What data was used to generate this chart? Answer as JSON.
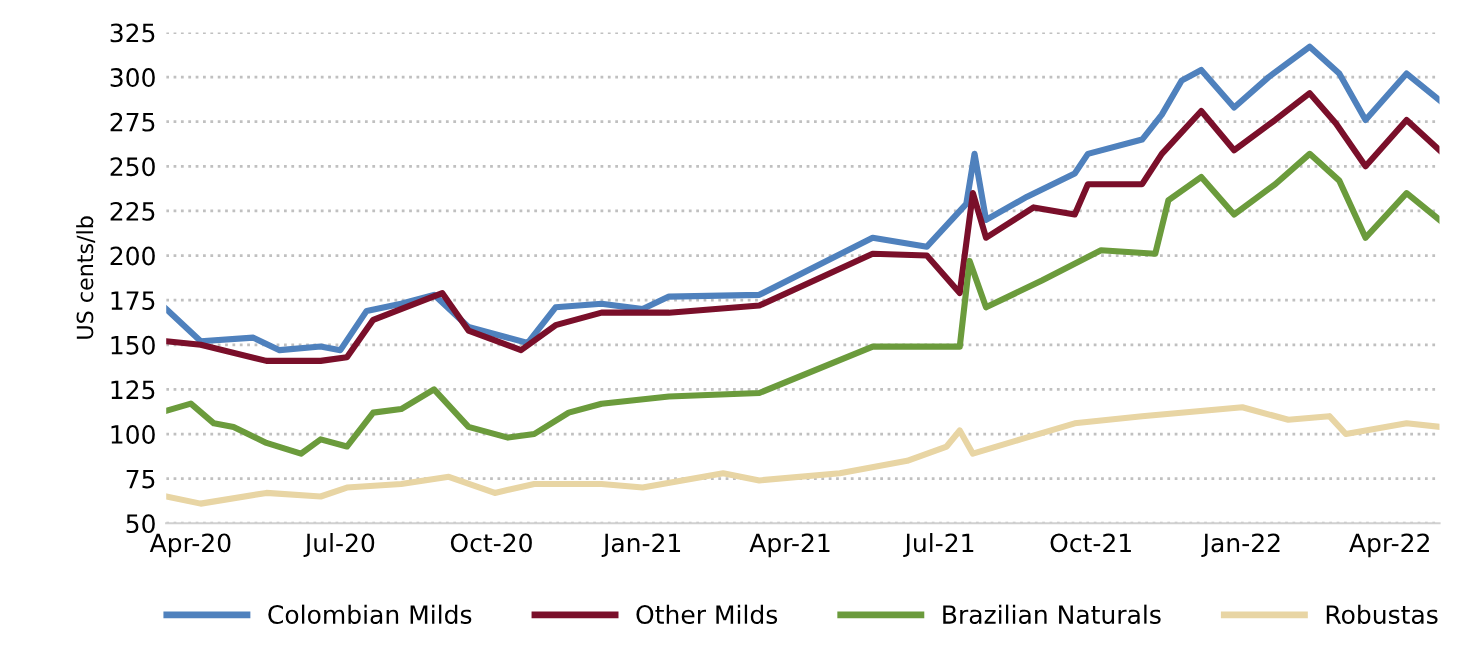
{
  "chart_data": {
    "type": "line",
    "ylabel": "US cents/lb",
    "xlim": [
      "2020-03-17",
      "2022-05-01"
    ],
    "xticks": [
      {
        "value": "2020-04-01",
        "label": "Apr-20"
      },
      {
        "value": "2020-07-01",
        "label": "Jul-20"
      },
      {
        "value": "2020-10-01",
        "label": "Oct-20"
      },
      {
        "value": "2021-01-01",
        "label": "Jan-21"
      },
      {
        "value": "2021-04-01",
        "label": "Apr-21"
      },
      {
        "value": "2021-07-01",
        "label": "Jul-21"
      },
      {
        "value": "2021-10-01",
        "label": "Oct-21"
      },
      {
        "value": "2022-01-01",
        "label": "Jan-22"
      },
      {
        "value": "2022-04-01",
        "label": "Apr-22"
      }
    ],
    "ylim": [
      50,
      325
    ],
    "yticks": [
      50,
      75,
      100,
      125,
      150,
      175,
      200,
      225,
      250,
      275,
      300,
      325
    ],
    "grid": "y",
    "legend": "bottom",
    "line_style": "solid",
    "marker": "none",
    "series": [
      {
        "name": "Colombian Milds",
        "color": "#4f81bd",
        "x": [
          "2020-03-17",
          "2020-04-07",
          "2020-05-09",
          "2020-05-25",
          "2020-06-19",
          "2020-07-01",
          "2020-07-17",
          "2020-08-07",
          "2020-08-27",
          "2020-09-17",
          "2020-10-23",
          "2020-11-09",
          "2020-12-07",
          "2021-01-01",
          "2021-01-17",
          "2021-03-13",
          "2021-05-21",
          "2021-06-23",
          "2021-07-17",
          "2021-07-22",
          "2021-07-29",
          "2021-08-23",
          "2021-09-21",
          "2021-09-29",
          "2021-11-01",
          "2021-11-13",
          "2021-11-25",
          "2021-12-07",
          "2021-12-27",
          "2022-01-17",
          "2022-02-11",
          "2022-03-01",
          "2022-03-17",
          "2022-04-11",
          "2022-05-01"
        ],
        "values": [
          170,
          152,
          154,
          147,
          149,
          147,
          169,
          173,
          178,
          160,
          151,
          171,
          173,
          170,
          177,
          178,
          210,
          205,
          229,
          257,
          220,
          233,
          246,
          257,
          265,
          279,
          298,
          304,
          283,
          300,
          317,
          302,
          276,
          302,
          287
        ]
      },
      {
        "name": "Other Milds",
        "color": "#7a0f2a",
        "x": [
          "2020-03-17",
          "2020-04-07",
          "2020-05-17",
          "2020-06-19",
          "2020-07-05",
          "2020-07-21",
          "2020-09-01",
          "2020-09-17",
          "2020-10-19",
          "2020-11-09",
          "2020-12-07",
          "2021-01-17",
          "2021-03-13",
          "2021-05-21",
          "2021-06-23",
          "2021-07-13",
          "2021-07-21",
          "2021-07-29",
          "2021-08-27",
          "2021-09-21",
          "2021-09-29",
          "2021-11-01",
          "2021-11-13",
          "2021-12-07",
          "2021-12-27",
          "2022-01-21",
          "2022-02-11",
          "2022-02-27",
          "2022-03-17",
          "2022-04-11",
          "2022-05-01"
        ],
        "values": [
          152,
          150,
          141,
          141,
          143,
          164,
          179,
          158,
          147,
          161,
          168,
          168,
          172,
          201,
          200,
          179,
          235,
          210,
          227,
          223,
          240,
          240,
          257,
          281,
          259,
          276,
          291,
          274,
          250,
          276,
          259
        ]
      },
      {
        "name": "Brazilian Naturals",
        "color": "#6b9b3c",
        "x": [
          "2020-03-17",
          "2020-04-01",
          "2020-04-15",
          "2020-04-27",
          "2020-05-17",
          "2020-06-07",
          "2020-06-19",
          "2020-07-05",
          "2020-07-21",
          "2020-08-07",
          "2020-08-27",
          "2020-09-17",
          "2020-10-11",
          "2020-10-27",
          "2020-11-17",
          "2020-12-07",
          "2021-01-17",
          "2021-03-13",
          "2021-05-21",
          "2021-07-13",
          "2021-07-19",
          "2021-07-29",
          "2021-09-01",
          "2021-10-07",
          "2021-11-09",
          "2021-11-17",
          "2021-12-07",
          "2021-12-27",
          "2022-01-21",
          "2022-02-11",
          "2022-03-01",
          "2022-03-17",
          "2022-04-11",
          "2022-05-01"
        ],
        "values": [
          113,
          117,
          106,
          104,
          95,
          89,
          97,
          93,
          112,
          114,
          125,
          104,
          98,
          100,
          112,
          117,
          121,
          123,
          149,
          149,
          197,
          171,
          186,
          203,
          201,
          231,
          244,
          223,
          240,
          257,
          242,
          210,
          235,
          220
        ]
      },
      {
        "name": "Robustas",
        "color": "#e8d5a4",
        "x": [
          "2020-03-17",
          "2020-04-07",
          "2020-05-17",
          "2020-06-19",
          "2020-07-05",
          "2020-08-07",
          "2020-09-05",
          "2020-10-03",
          "2020-10-27",
          "2020-12-07",
          "2021-01-01",
          "2021-02-19",
          "2021-03-13",
          "2021-05-01",
          "2021-06-11",
          "2021-07-05",
          "2021-07-13",
          "2021-07-21",
          "2021-08-19",
          "2021-09-21",
          "2021-11-01",
          "2022-01-01",
          "2022-01-29",
          "2022-02-23",
          "2022-03-05",
          "2022-04-11",
          "2022-05-01"
        ],
        "values": [
          65,
          61,
          67,
          65,
          70,
          72,
          76,
          67,
          72,
          72,
          70,
          78,
          74,
          78,
          85,
          93,
          102,
          89,
          97,
          106,
          110,
          115,
          108,
          110,
          100,
          106,
          104
        ]
      }
    ]
  }
}
